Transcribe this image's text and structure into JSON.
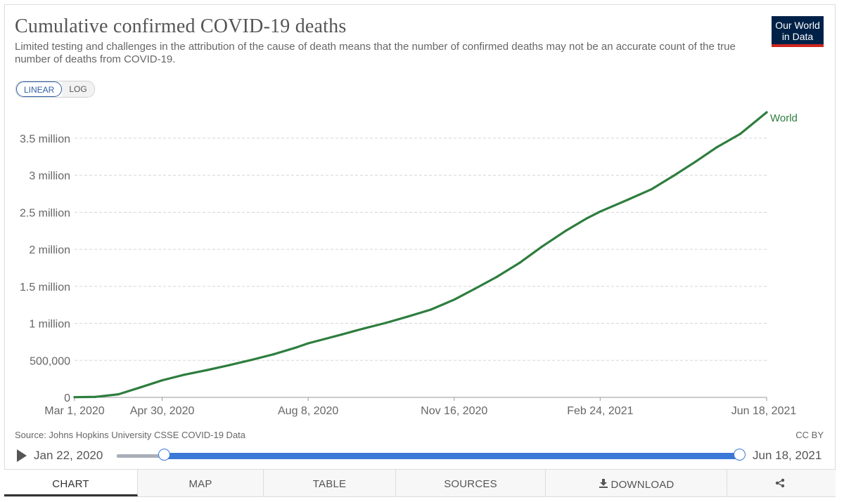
{
  "header": {
    "title": "Cumulative confirmed COVID-19 deaths",
    "subtitle": "Limited testing and challenges in the attribution of the cause of death means that the number of confirmed deaths may not be an accurate count of the true number of deaths from COVID-19.",
    "logo_line1": "Our World",
    "logo_line2": "in Data"
  },
  "scale_toggle": {
    "linear": "LINEAR",
    "log": "LOG",
    "selected": "LINEAR"
  },
  "footer": {
    "source": "Source: Johns Hopkins University CSSE COVID-19 Data",
    "license": "CC BY"
  },
  "timeline": {
    "start_label": "Jan 22, 2020",
    "end_label": "Jun 18, 2021",
    "range_start": "2020-01-22",
    "range_end": "2021-06-18"
  },
  "tabs": [
    {
      "label": "CHART",
      "icon": "",
      "active": true
    },
    {
      "label": "MAP",
      "icon": "",
      "active": false
    },
    {
      "label": "TABLE",
      "icon": "",
      "active": false
    },
    {
      "label": "SOURCES",
      "icon": "",
      "active": false
    },
    {
      "label": "DOWNLOAD",
      "icon": "download-icon",
      "active": false
    },
    {
      "label": "",
      "icon": "share-icon",
      "active": false
    }
  ],
  "colors": {
    "series": "#2e7d3e",
    "accent": "#3c78d8",
    "logo_bg": "#002147",
    "logo_bar": "#ce261e"
  },
  "chart_data": {
    "type": "line",
    "title": "Cumulative confirmed COVID-19 deaths",
    "scale": "linear",
    "x_range": [
      "2020-03-01",
      "2021-06-18"
    ],
    "ylim": [
      0,
      3850000
    ],
    "grid": true,
    "x_ticks": [
      {
        "date": "2020-03-01",
        "label": "Mar 1, 2020"
      },
      {
        "date": "2020-04-30",
        "label": "Apr 30, 2020"
      },
      {
        "date": "2020-08-08",
        "label": "Aug 8, 2020"
      },
      {
        "date": "2020-11-16",
        "label": "Nov 16, 2020"
      },
      {
        "date": "2021-02-24",
        "label": "Feb 24, 2021"
      },
      {
        "date": "2021-06-18",
        "label": "Jun 18, 2021"
      }
    ],
    "y_ticks": [
      {
        "value": 0,
        "label": "0"
      },
      {
        "value": 500000,
        "label": "500,000"
      },
      {
        "value": 1000000,
        "label": "1 million"
      },
      {
        "value": 1500000,
        "label": "1.5 million"
      },
      {
        "value": 2000000,
        "label": "2 million"
      },
      {
        "value": 2500000,
        "label": "2.5 million"
      },
      {
        "value": 3000000,
        "label": "3 million"
      },
      {
        "value": 3500000,
        "label": "3.5 million"
      }
    ],
    "series": [
      {
        "name": "World",
        "color": "#2e7d3e",
        "points": [
          [
            "2020-03-01",
            3000
          ],
          [
            "2020-03-15",
            6500
          ],
          [
            "2020-03-31",
            42000
          ],
          [
            "2020-04-15",
            135000
          ],
          [
            "2020-04-30",
            230000
          ],
          [
            "2020-05-15",
            305000
          ],
          [
            "2020-05-31",
            370000
          ],
          [
            "2020-06-15",
            435000
          ],
          [
            "2020-06-30",
            505000
          ],
          [
            "2020-07-15",
            580000
          ],
          [
            "2020-07-31",
            675000
          ],
          [
            "2020-08-08",
            730000
          ],
          [
            "2020-08-31",
            850000
          ],
          [
            "2020-09-15",
            930000
          ],
          [
            "2020-09-30",
            1005000
          ],
          [
            "2020-10-15",
            1090000
          ],
          [
            "2020-10-31",
            1185000
          ],
          [
            "2020-11-16",
            1320000
          ],
          [
            "2020-11-30",
            1465000
          ],
          [
            "2020-12-15",
            1625000
          ],
          [
            "2020-12-31",
            1820000
          ],
          [
            "2021-01-15",
            2035000
          ],
          [
            "2021-01-31",
            2245000
          ],
          [
            "2021-02-15",
            2420000
          ],
          [
            "2021-02-24",
            2510000
          ],
          [
            "2021-03-15",
            2670000
          ],
          [
            "2021-03-31",
            2810000
          ],
          [
            "2021-04-15",
            2990000
          ],
          [
            "2021-04-30",
            3180000
          ],
          [
            "2021-05-15",
            3380000
          ],
          [
            "2021-05-31",
            3560000
          ],
          [
            "2021-06-18",
            3850000
          ]
        ]
      }
    ]
  }
}
